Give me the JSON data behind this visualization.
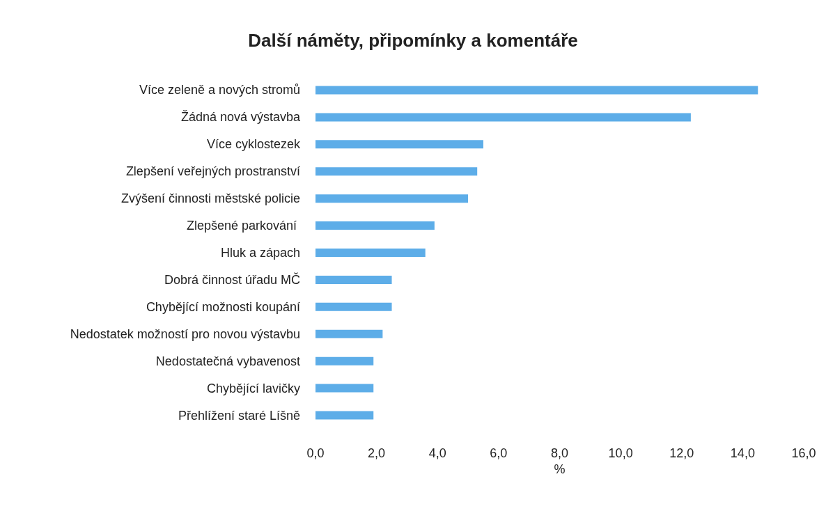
{
  "chart_data": {
    "type": "bar",
    "orientation": "horizontal",
    "title": "Další náměty, připomínky a komentáře",
    "xlabel": "%",
    "categories": [
      "Více zeleně a nových stromů",
      "Žádná nová výstavba",
      "Více cyklostezek",
      "Zlepšení veřejných prostranství",
      "Zvýšení činnosti městské policie",
      "Zlepšené parkování ",
      "Hluk a zápach",
      "Dobrá činnost úřadu MČ",
      "Chybějící možnosti koupání",
      "Nedostatek možností pro novou výstavbu",
      "Nedostatečná vybavenost",
      "Chybějící lavičky",
      "Přehlížení staré Líšně"
    ],
    "values": [
      14.5,
      12.3,
      5.5,
      5.3,
      5.0,
      3.9,
      3.6,
      2.5,
      2.5,
      2.2,
      1.9,
      1.9,
      1.9
    ],
    "color": "#5dade8",
    "xlim": [
      0,
      16
    ],
    "xticks": [
      {
        "value": 0,
        "label": "0,0"
      },
      {
        "value": 2,
        "label": "2,0"
      },
      {
        "value": 4,
        "label": "4,0"
      },
      {
        "value": 6,
        "label": "6,0"
      },
      {
        "value": 8,
        "label": "8,0"
      },
      {
        "value": 10,
        "label": "10,0"
      },
      {
        "value": 12,
        "label": "12,0"
      },
      {
        "value": 14,
        "label": "14,0"
      },
      {
        "value": 16,
        "label": "16,0"
      }
    ],
    "grid": false
  }
}
